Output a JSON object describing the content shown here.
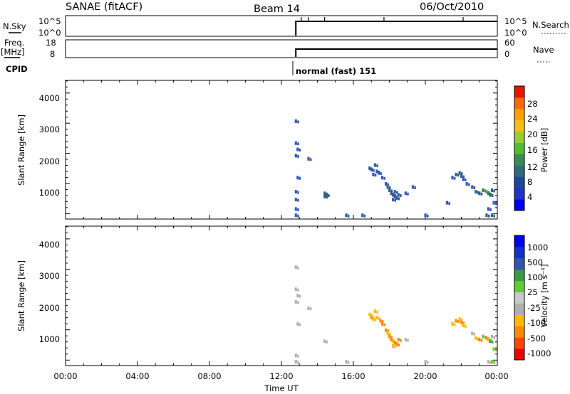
{
  "header": {
    "station": "SANAE (fitACF)",
    "beam": "Beam 14",
    "date": "06/Oct/2010"
  },
  "left_labels": {
    "nsky": "N.Sky",
    "freq": "Freq.",
    "freq_unit": "[MHz]",
    "cpid": "CPID"
  },
  "right_labels": {
    "nsearch": "N.Search",
    "nave": "Nave"
  },
  "cpid_text": "normal (fast) 151",
  "colors": {
    "pw_scale": [
      "#0000ff",
      "#3355bb",
      "#2c5f8a",
      "#3a7d5d",
      "#4bbb3b",
      "#9acd32",
      "#f5c518",
      "#ffa500",
      "#ff7700",
      "#ff4400",
      "#ee0000"
    ],
    "vel_scale": [
      "#ee0000",
      "#ff4400",
      "#ff8800",
      "#ffbb00",
      "#b0b0b0",
      "#c8c8c8",
      "#66cc33",
      "#3a9a4a",
      "#3355aa",
      "#1133cc",
      "#0000ee"
    ],
    "noise_line": "#000000"
  },
  "chart_data": [
    {
      "type": "line",
      "name": "nsky-nsearch",
      "x": [
        12.8,
        13.2,
        13.5,
        14.0,
        15.0,
        16.0,
        18.0,
        20.0,
        22.0,
        24.0
      ],
      "y_ticks_left": [
        "10^5",
        "10^0"
      ],
      "y_ticks_right": [
        "10^5",
        "10^0"
      ],
      "start_hour": 12.8,
      "level": 5
    },
    {
      "type": "line",
      "name": "freq-nave",
      "y_ticks_left": [
        "18",
        "8"
      ],
      "y_ticks_right": [
        "60",
        "0"
      ],
      "start_hour": 12.8,
      "freq_level": 12
    },
    {
      "type": "heatmap",
      "name": "power",
      "ylabel": "Slant Range [km]",
      "y_ticks": [
        "1000",
        "2000",
        "3000",
        "4000"
      ],
      "ylim": [
        180,
        4600
      ],
      "xlim": [
        0,
        24
      ],
      "colorbar_label": "Power [dB]",
      "colorbar_ticks": [
        "4",
        "8",
        "12",
        "16",
        "20",
        "24",
        "28"
      ],
      "cells": [
        [
          12.8,
          3300,
          1
        ],
        [
          12.8,
          2600,
          1
        ],
        [
          12.9,
          2400,
          1
        ],
        [
          12.8,
          2200,
          1
        ],
        [
          12.9,
          1500,
          1
        ],
        [
          12.8,
          1050,
          1
        ],
        [
          12.8,
          800,
          1
        ],
        [
          12.8,
          500,
          1
        ],
        [
          12.8,
          300,
          1
        ],
        [
          13.5,
          2100,
          1
        ],
        [
          14.4,
          900,
          2
        ],
        [
          14.5,
          950,
          2
        ],
        [
          14.4,
          1000,
          2
        ],
        [
          15.6,
          300,
          1
        ],
        [
          16.5,
          300,
          1
        ],
        [
          16.9,
          1800,
          2
        ],
        [
          17.0,
          1750,
          1
        ],
        [
          17.2,
          1900,
          2
        ],
        [
          17.3,
          1700,
          2
        ],
        [
          17.4,
          1650,
          1
        ],
        [
          17.1,
          1600,
          1
        ],
        [
          17.6,
          1500,
          1
        ],
        [
          17.8,
          1300,
          1
        ],
        [
          17.9,
          1200,
          2
        ],
        [
          18.0,
          1100,
          2
        ],
        [
          18.1,
          1000,
          2
        ],
        [
          18.2,
          950,
          2
        ],
        [
          18.3,
          900,
          1
        ],
        [
          18.4,
          850,
          2
        ],
        [
          18.5,
          950,
          1
        ],
        [
          18.2,
          800,
          1
        ],
        [
          18.3,
          1050,
          1
        ],
        [
          18.9,
          1000,
          1
        ],
        [
          19.3,
          1200,
          1
        ],
        [
          20.0,
          300,
          1
        ],
        [
          21.2,
          700,
          1
        ],
        [
          21.5,
          1500,
          1
        ],
        [
          21.7,
          1600,
          2
        ],
        [
          21.9,
          1650,
          2
        ],
        [
          22.0,
          1550,
          2
        ],
        [
          22.1,
          1450,
          1
        ],
        [
          22.3,
          1300,
          1
        ],
        [
          22.6,
          1200,
          1
        ],
        [
          22.8,
          1050,
          2
        ],
        [
          23.0,
          1000,
          2
        ],
        [
          23.2,
          1100,
          3
        ],
        [
          23.4,
          1050,
          4
        ],
        [
          23.5,
          1000,
          3
        ],
        [
          23.6,
          950,
          2
        ],
        [
          23.7,
          1100,
          2
        ],
        [
          23.8,
          700,
          1
        ],
        [
          23.5,
          500,
          1
        ],
        [
          23.7,
          300,
          2
        ],
        [
          23.4,
          300,
          2
        ]
      ]
    },
    {
      "type": "heatmap",
      "name": "velocity",
      "ylabel": "Slant Range [km]",
      "xlabel": "Time UT",
      "y_ticks": [
        "1000",
        "2000",
        "3000",
        "4000"
      ],
      "ylim": [
        180,
        4600
      ],
      "xlim": [
        0,
        24
      ],
      "x_ticks": [
        "00:00",
        "04:00",
        "08:00",
        "12:00",
        "16:00",
        "20:00",
        "00:00"
      ],
      "colorbar_label": "Velocity [m s⁻¹]",
      "colorbar_ticks": [
        "-1000",
        "-500",
        "-100",
        "-25",
        "25",
        "100",
        "500",
        "1000"
      ],
      "cells": [
        [
          12.8,
          3300,
          4
        ],
        [
          12.8,
          2600,
          4
        ],
        [
          12.9,
          2400,
          4
        ],
        [
          12.8,
          2200,
          4
        ],
        [
          12.9,
          1500,
          4
        ],
        [
          12.8,
          500,
          4
        ],
        [
          12.8,
          300,
          4
        ],
        [
          13.5,
          2000,
          4
        ],
        [
          14.4,
          950,
          4
        ],
        [
          15.6,
          300,
          4
        ],
        [
          16.9,
          1800,
          3
        ],
        [
          17.0,
          1700,
          2
        ],
        [
          17.2,
          1900,
          3
        ],
        [
          17.3,
          1700,
          3
        ],
        [
          17.5,
          1600,
          2
        ],
        [
          17.1,
          1650,
          3
        ],
        [
          17.6,
          1500,
          2
        ],
        [
          17.8,
          1300,
          2
        ],
        [
          17.9,
          1200,
          3
        ],
        [
          18.0,
          1100,
          2
        ],
        [
          18.1,
          1000,
          2
        ],
        [
          18.2,
          950,
          3
        ],
        [
          18.3,
          900,
          2
        ],
        [
          18.4,
          850,
          2
        ],
        [
          18.5,
          1000,
          2
        ],
        [
          18.2,
          800,
          3
        ],
        [
          18.9,
          1000,
          4
        ],
        [
          21.5,
          1500,
          3
        ],
        [
          21.7,
          1600,
          2
        ],
        [
          21.9,
          1650,
          3
        ],
        [
          22.0,
          1550,
          2
        ],
        [
          22.1,
          1450,
          3
        ],
        [
          22.6,
          1200,
          4
        ],
        [
          22.8,
          1050,
          3
        ],
        [
          23.0,
          1000,
          2
        ],
        [
          23.2,
          1100,
          6
        ],
        [
          23.4,
          1050,
          2
        ],
        [
          23.5,
          1000,
          3
        ],
        [
          23.6,
          950,
          7
        ],
        [
          23.7,
          1100,
          4
        ],
        [
          23.8,
          700,
          6
        ],
        [
          23.5,
          300,
          4
        ],
        [
          23.7,
          300,
          6
        ],
        [
          20.0,
          300,
          4
        ]
      ]
    }
  ]
}
